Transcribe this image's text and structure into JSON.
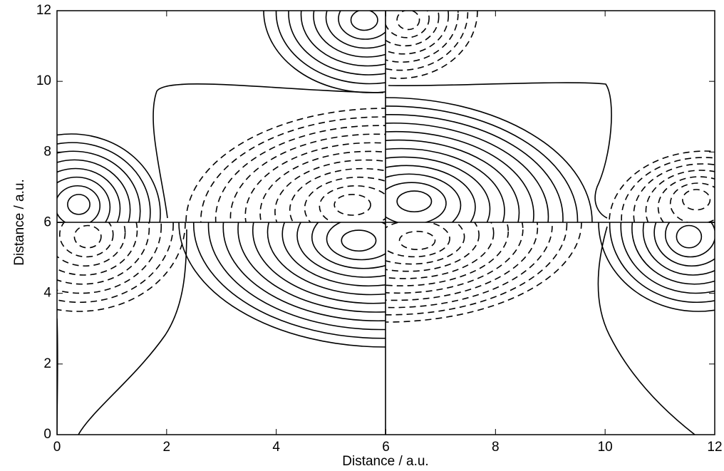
{
  "chart_data": {
    "type": "contour",
    "x_label": "Distance / a.u.",
    "y_label": "Distance / a.u.",
    "xlim": [
      0,
      12
    ],
    "ylim": [
      0,
      12
    ],
    "xticks": [
      0,
      2,
      4,
      6,
      8,
      10,
      12
    ],
    "yticks": [
      0,
      2,
      4,
      6,
      8,
      10,
      12
    ]
  }
}
